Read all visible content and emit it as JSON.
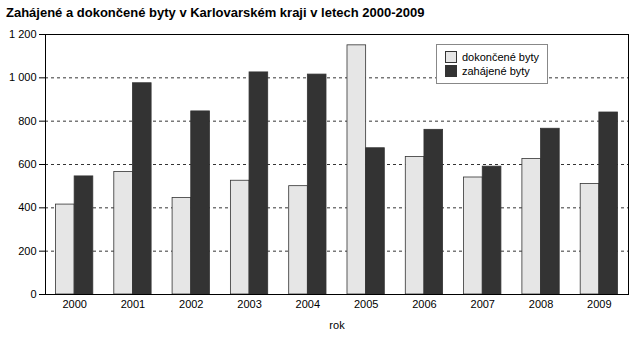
{
  "chart_data": {
    "type": "bar",
    "title": "Zahájené a dokončené byty v Karlovarském kraji v letech 2000-2009",
    "x_label": "rok",
    "categories": [
      "2000",
      "2001",
      "2002",
      "2003",
      "2004",
      "2005",
      "2006",
      "2007",
      "2008",
      "2009"
    ],
    "series": [
      {
        "name": "dokončené byty",
        "color": "#e6e6e6",
        "values": [
          415,
          565,
          445,
          525,
          500,
          1150,
          635,
          540,
          625,
          510
        ]
      },
      {
        "name": "zahájené byty",
        "color": "#333333",
        "values": [
          545,
          975,
          845,
          1025,
          1015,
          675,
          760,
          590,
          765,
          840
        ]
      }
    ],
    "ylim": [
      0,
      1200
    ],
    "yticks": [
      0,
      200,
      400,
      600,
      800,
      {
        "value": 1000,
        "label": "1 000"
      },
      {
        "value": 1200,
        "label": "1 200"
      }
    ],
    "grid": true,
    "legend": "top-right"
  }
}
